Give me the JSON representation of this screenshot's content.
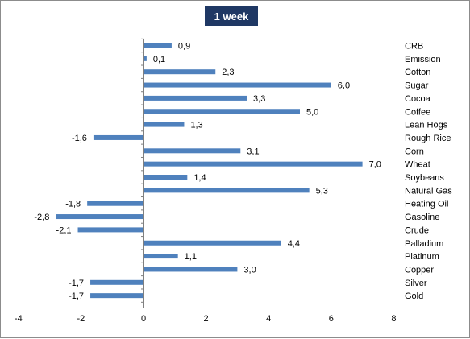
{
  "chart_data": {
    "type": "bar",
    "orientation": "horizontal",
    "title": "1 week",
    "categories": [
      "CRB",
      "Emission",
      "Cotton",
      "Sugar",
      "Cocoa",
      "Coffee",
      "Lean Hogs",
      "Rough Rice",
      "Corn",
      "Wheat",
      "Soybeans",
      "Natural Gas",
      "Heating Oil",
      "Gasoline",
      "Crude",
      "Palladium",
      "Platinum",
      "Copper",
      "Silver",
      "Gold"
    ],
    "values": [
      0.9,
      0.1,
      2.3,
      6.0,
      3.3,
      5.0,
      1.3,
      -1.6,
      3.1,
      7.0,
      1.4,
      5.3,
      -1.8,
      -2.8,
      -2.1,
      4.4,
      1.1,
      3.0,
      -1.7,
      -1.7
    ],
    "value_labels": [
      "0,9",
      "0,1",
      "2,3",
      "6,0",
      "3,3",
      "5,0",
      "1,3",
      "-1,6",
      "3,1",
      "7,0",
      "1,4",
      "5,3",
      "-1,8",
      "-2,8",
      "-2,1",
      "4,4",
      "1,1",
      "3,0",
      "-1,7",
      "-1,7"
    ],
    "xlim": [
      -4,
      8
    ],
    "xticks": [
      -4,
      -2,
      0,
      2,
      4,
      6,
      8
    ],
    "xtick_labels": [
      "-4",
      "-2",
      "0",
      "2",
      "4",
      "6",
      "8"
    ],
    "grid": false,
    "legend": "none",
    "bar_color": "#4f81bd",
    "title_bg": "#1f3864"
  }
}
